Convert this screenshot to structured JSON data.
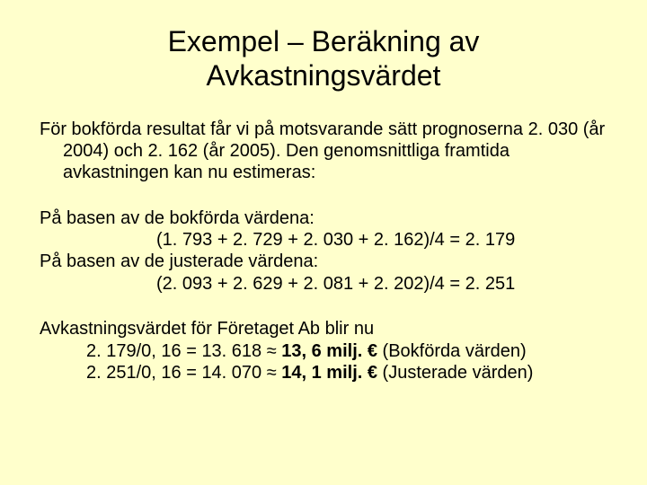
{
  "colors": {
    "background": "#ffffcc",
    "text": "#000000"
  },
  "typography": {
    "title_fontsize": 32,
    "body_fontsize": 20,
    "font_family": "Arial"
  },
  "title": {
    "line1": "Exempel – Beräkning av",
    "line2": "Avkastningsvärdet"
  },
  "para1": {
    "text": "För bokförda resultat får vi på motsvarande sätt prognoserna 2. 030 (år 2004) och 2. 162 (år 2005). Den genomsnittliga framtida avkastningen kan nu estimeras:"
  },
  "para2": {
    "intro_book": "På basen av de bokförda värdena:",
    "eq_book": "(1. 793 + 2. 729 + 2. 030 + 2. 162)/4 = 2. 179",
    "intro_adj": "På basen av de justerade värdena:",
    "eq_adj": "(2. 093 + 2. 629 + 2. 081 + 2. 202)/4 = 2. 251"
  },
  "para3": {
    "intro": "Avkastningsvärdet för Företaget Ab blir nu",
    "line_book_a": "2. 179/0, 16 = 13. 618 ≈ ",
    "line_book_b": "13, 6 milj. €",
    "line_book_c": "   (Bokförda värden)",
    "line_adj_a": "2. 251/0, 16 = 14. 070 ≈ ",
    "line_adj_b": "14, 1 milj. €",
    "line_adj_c": "   (Justerade värden)"
  }
}
